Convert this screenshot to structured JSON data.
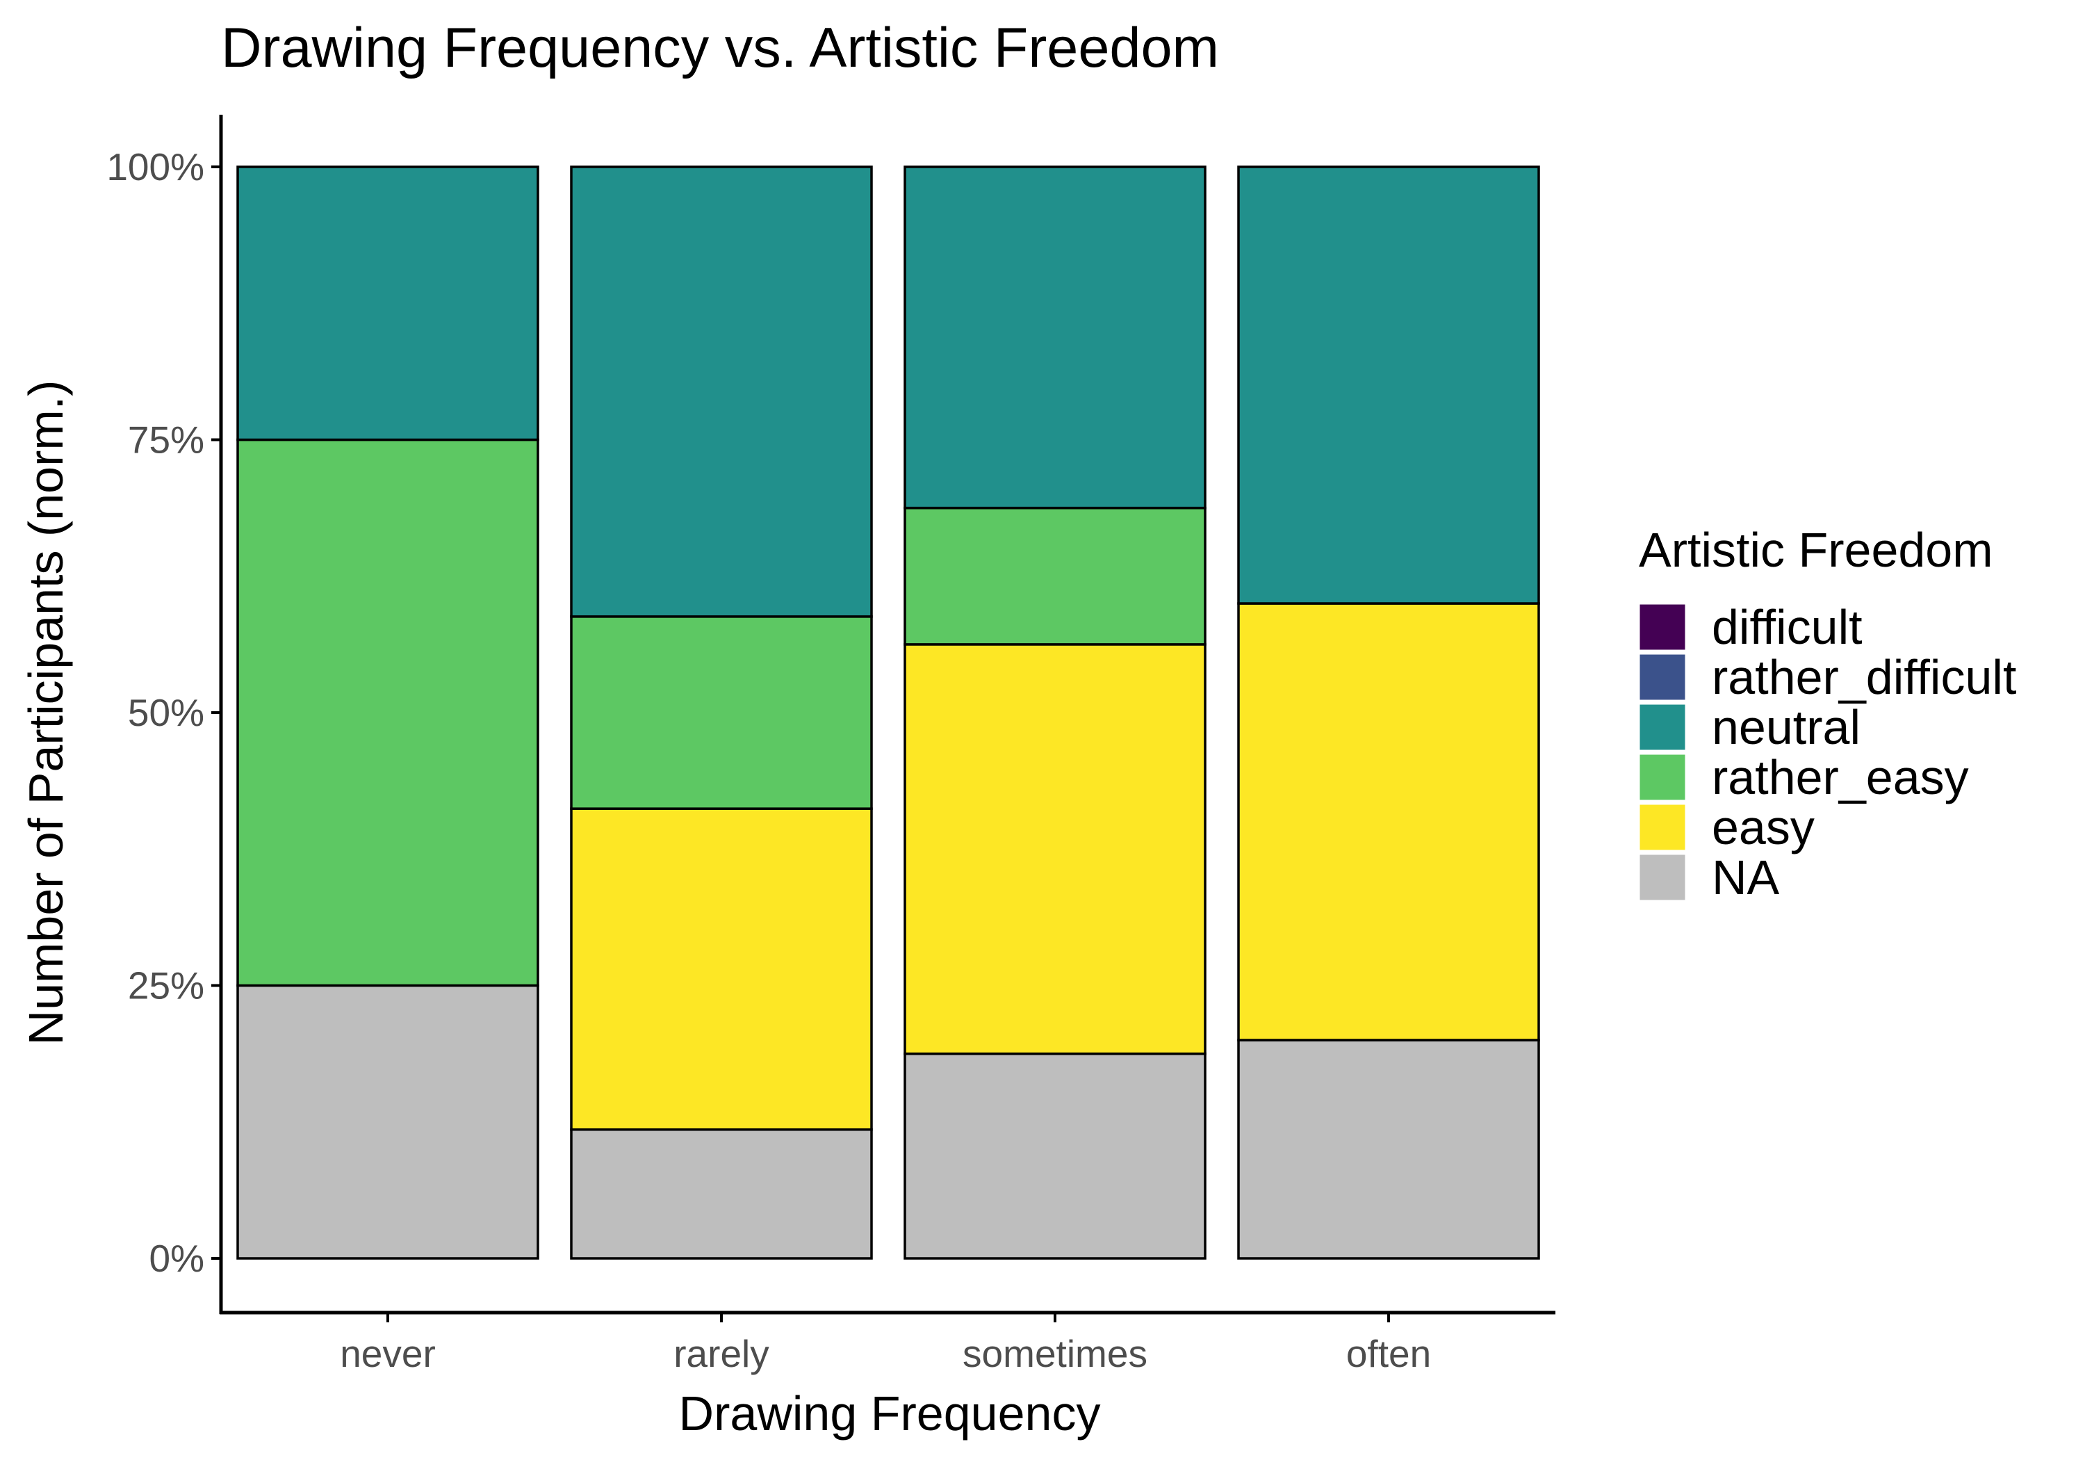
{
  "chart_data": {
    "type": "bar",
    "stacked": true,
    "normalized": true,
    "title": "Drawing Frequency vs. Artistic Freedom",
    "xlabel": "Drawing Frequency",
    "ylabel": "Number of Participants (norm.)",
    "categories": [
      "never",
      "rarely",
      "sometimes",
      "often"
    ],
    "ylim": [
      0,
      1
    ],
    "yticks": [
      {
        "value": 0,
        "label": "0%"
      },
      {
        "value": 0.25,
        "label": "25%"
      },
      {
        "value": 0.5,
        "label": "50%"
      },
      {
        "value": 0.75,
        "label": "75%"
      },
      {
        "value": 1,
        "label": "100%"
      }
    ],
    "legend": {
      "title": "Artistic Freedom",
      "position": "right"
    },
    "series": [
      {
        "name": "difficult",
        "color": "#440154",
        "values": [
          0,
          0,
          0,
          0
        ]
      },
      {
        "name": "rather_difficult",
        "color": "#3B528B",
        "values": [
          0,
          0,
          0,
          0
        ]
      },
      {
        "name": "neutral",
        "color": "#21908C",
        "values": [
          0.25,
          0.412,
          0.3125,
          0.4
        ]
      },
      {
        "name": "rather_easy",
        "color": "#5DC863",
        "values": [
          0.5,
          0.176,
          0.125,
          0
        ]
      },
      {
        "name": "easy",
        "color": "#FDE725",
        "values": [
          0,
          0.294,
          0.375,
          0.4
        ]
      },
      {
        "name": "NA",
        "color": "#BEBEBE",
        "values": [
          0.25,
          0.118,
          0.1875,
          0.2
        ]
      }
    ],
    "stack_order_bottom_to_top": [
      "NA",
      "easy",
      "rather_easy",
      "neutral",
      "rather_difficult",
      "difficult"
    ],
    "grid": false
  }
}
